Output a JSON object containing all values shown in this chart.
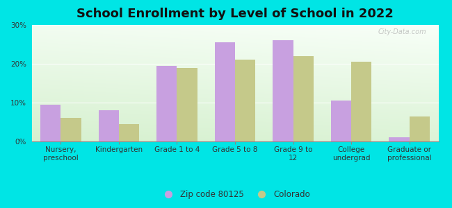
{
  "title": "School Enrollment by Level of School in 2022",
  "categories": [
    "Nursery,\npreschool",
    "Kindergarten",
    "Grade 1 to 4",
    "Grade 5 to 8",
    "Grade 9 to\n12",
    "College\nundergrad",
    "Graduate or\nprofessional"
  ],
  "zip_values": [
    9.5,
    8.0,
    19.5,
    25.5,
    26.0,
    10.5,
    1.0
  ],
  "colorado_values": [
    6.0,
    4.5,
    19.0,
    21.0,
    22.0,
    20.5,
    6.5
  ],
  "zip_color": "#c8a0e0",
  "colorado_color": "#c5c98a",
  "background_color": "#00e5e5",
  "ylim": [
    0,
    30
  ],
  "yticks": [
    0,
    10,
    20,
    30
  ],
  "zip_label": "Zip code 80125",
  "colorado_label": "Colorado",
  "watermark": "City-Data.com",
  "bar_width": 0.35,
  "title_fontsize": 13,
  "tick_fontsize": 7.5,
  "legend_fontsize": 8.5
}
